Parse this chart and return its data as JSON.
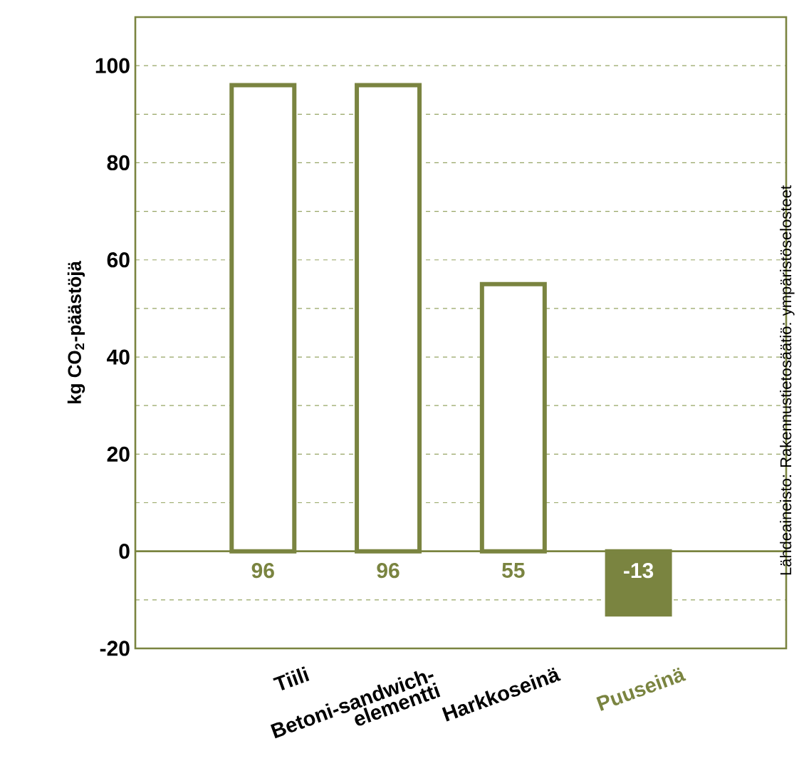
{
  "chart_data": {
    "type": "bar",
    "categories": [
      "Tiili",
      "Betoni-sandwich-elementti",
      "Harkkoseinä",
      "Puuseinä"
    ],
    "values": [
      96,
      96,
      55,
      -13
    ],
    "color": "#7a8440",
    "colors": [
      "#ffffff",
      "#ffffff",
      "#ffffff",
      "#7a8440"
    ],
    "data_labels": true,
    "ylabel": "kg CO$_{2}$-päästöjä",
    "ylim": [
      -20,
      110
    ],
    "yticks": [
      -20,
      {
        "value": -10,
        "label": null
      },
      0,
      {
        "value": 10,
        "label": null
      },
      20,
      {
        "value": 30,
        "label": null
      },
      40,
      {
        "value": 50,
        "label": null
      },
      60,
      {
        "value": 70,
        "label": null
      },
      80,
      {
        "value": 90,
        "label": null
      },
      100
    ],
    "grid": "y",
    "ref_lines": [
      {
        "axis": "y",
        "value": 0
      }
    ],
    "annotations": [
      "Lähdeaineisto: Rakennustietosäätiö: ympäristöselosteet"
    ]
  }
}
